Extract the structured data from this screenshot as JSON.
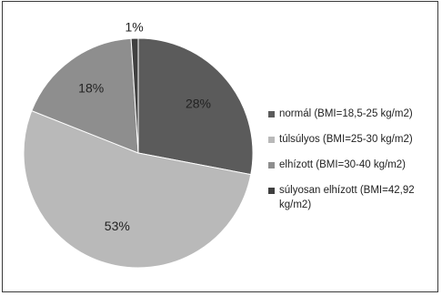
{
  "chart_data": {
    "type": "pie",
    "categories": [
      "normál (BMI=18,5-25 kg/m2)",
      "túlsúlyos (BMI=25-30 kg/m2)",
      "elhízott (BMI=30-40 kg/m2)",
      "súlyosan elhízott (BMI=42,92 kg/m2)"
    ],
    "values": [
      28,
      53,
      18,
      1
    ],
    "labels": [
      "28%",
      "53%",
      "18%",
      "1%"
    ],
    "colors": [
      "#5b5b5b",
      "#b9b9b9",
      "#8e8e8e",
      "#404040"
    ],
    "legend_position": "right",
    "title": ""
  }
}
